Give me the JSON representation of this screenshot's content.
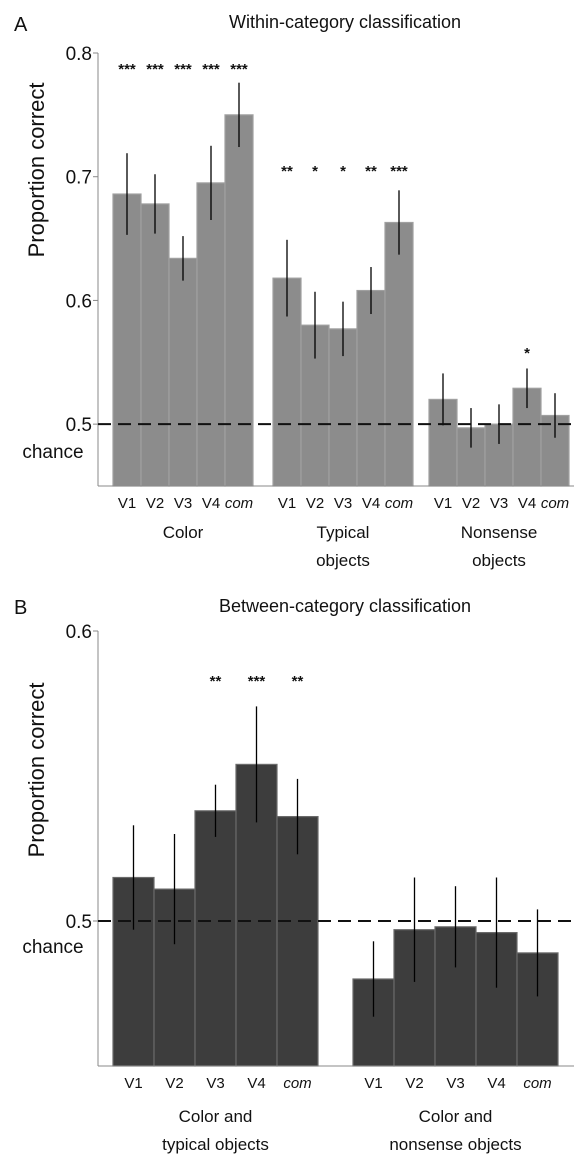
{
  "chart_data": [
    {
      "type": "bar",
      "panel_label": "A",
      "title": "Within-category classification",
      "ylabel": "Proportion correct",
      "ylim": [
        0.45,
        0.8
      ],
      "yticks": [
        {
          "value": 0.8,
          "label": "0.8"
        },
        {
          "value": 0.7,
          "label": "0.7"
        },
        {
          "value": 0.6,
          "label": "0.6"
        },
        {
          "value": 0.5,
          "label": "0.5"
        }
      ],
      "chance_value": 0.5,
      "chance_label": "chance",
      "bar_color": "#8c8c8c",
      "bar_edge_color": "#a0a0a0",
      "categories": [
        "V1",
        "V2",
        "V3",
        "V4",
        "com"
      ],
      "groups": [
        {
          "name_lines": [
            "Color"
          ],
          "values": [
            0.686,
            0.678,
            0.634,
            0.695,
            0.75
          ],
          "errors": [
            0.033,
            0.024,
            0.018,
            0.03,
            0.026
          ],
          "stars": [
            "***",
            "***",
            "***",
            "***",
            "***"
          ]
        },
        {
          "name_lines": [
            "Typical",
            "objects"
          ],
          "values": [
            0.618,
            0.58,
            0.577,
            0.608,
            0.663
          ],
          "errors": [
            0.031,
            0.027,
            0.022,
            0.019,
            0.026
          ],
          "stars": [
            "**",
            "*",
            "*",
            "**",
            "***"
          ]
        },
        {
          "name_lines": [
            "Nonsense",
            "objects"
          ],
          "values": [
            0.52,
            0.497,
            0.5,
            0.529,
            0.507
          ],
          "errors": [
            0.021,
            0.016,
            0.016,
            0.016,
            0.018
          ],
          "stars": [
            "",
            "",
            "",
            "*",
            ""
          ]
        }
      ]
    },
    {
      "type": "bar",
      "panel_label": "B",
      "title": "Between-category classification",
      "ylabel": "Proportion correct",
      "ylim": [
        0.45,
        0.6
      ],
      "yticks": [
        {
          "value": 0.6,
          "label": "0.6"
        },
        {
          "value": 0.5,
          "label": "0.5"
        }
      ],
      "chance_value": 0.5,
      "chance_label": "chance",
      "bar_color": "#3d3d3d",
      "bar_edge_color": "#6a6a6a",
      "categories": [
        "V1",
        "V2",
        "V3",
        "V4",
        "com"
      ],
      "groups": [
        {
          "name_lines": [
            "Color and",
            "typical objects"
          ],
          "values": [
            0.515,
            0.511,
            0.538,
            0.554,
            0.536
          ],
          "errors": [
            0.018,
            0.019,
            0.009,
            0.02,
            0.013
          ],
          "stars": [
            "",
            "",
            "**",
            "***",
            "**"
          ]
        },
        {
          "name_lines": [
            "Color and",
            "nonsense objects"
          ],
          "values": [
            0.48,
            0.497,
            0.498,
            0.496,
            0.489
          ],
          "errors": [
            0.013,
            0.018,
            0.014,
            0.019,
            0.015
          ],
          "stars": [
            "",
            "",
            "",
            "",
            ""
          ]
        }
      ]
    }
  ]
}
